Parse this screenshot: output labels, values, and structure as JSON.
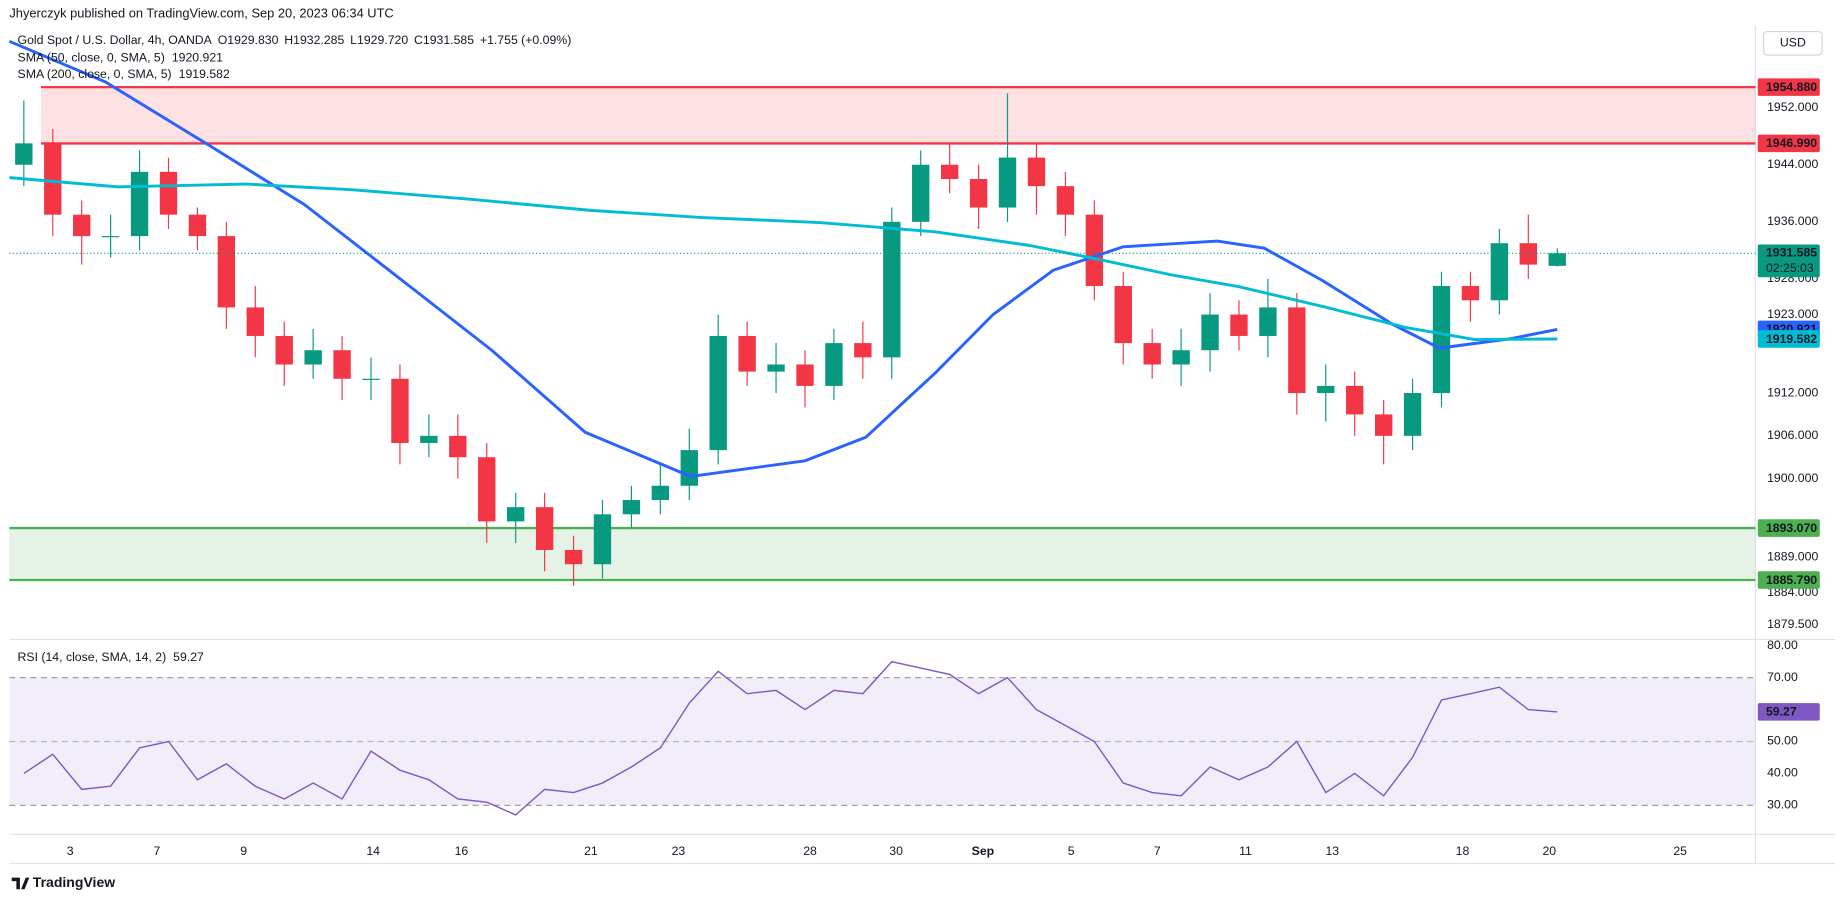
{
  "header": {
    "publisher": "Jhyerczyk published on TradingView.com, Sep 20, 2023 06:34 UTC",
    "symbol": "Gold Spot / U.S. Dollar, 4h, OANDA",
    "ohlc": [
      {
        "key": "O",
        "value": "1929.830"
      },
      {
        "key": "H",
        "value": "1932.285"
      },
      {
        "key": "L",
        "value": "1929.720"
      },
      {
        "key": "C",
        "value": "1931.585"
      }
    ],
    "change": "+1.755 (+0.09%)",
    "currency": "USD",
    "countdown": "02:25:03",
    "brand": "TradingView"
  },
  "chart_data": [
    {
      "type": "candlestick",
      "up_color": "#089981",
      "down_color": "#f23645",
      "x": [
        2,
        6,
        10,
        14,
        18,
        22,
        26,
        30,
        34,
        38,
        42,
        46,
        50,
        54,
        58,
        62,
        66,
        70,
        74,
        78,
        82,
        86,
        90,
        94,
        98,
        102,
        106,
        110,
        114,
        118,
        122,
        126,
        130,
        134,
        138,
        142,
        146,
        150,
        154,
        158,
        162,
        166,
        170,
        174,
        178,
        182,
        186,
        190,
        194,
        198,
        202,
        206,
        210,
        214
      ],
      "open": [
        1944,
        1947,
        1937,
        1934,
        1934,
        1943,
        1937,
        1934,
        1924,
        1920,
        1916,
        1918,
        1914,
        1914,
        1905,
        1906,
        1903,
        1894,
        1896,
        1890,
        1888,
        1895,
        1897,
        1899,
        1904,
        1920,
        1915,
        1916,
        1913,
        1919,
        1917,
        1936,
        1944,
        1942,
        1938,
        1945,
        1941,
        1937,
        1927,
        1919,
        1916,
        1918,
        1923,
        1920,
        1924,
        1912,
        1913,
        1909,
        1906,
        1912,
        1927,
        1925,
        1933,
        1929.83
      ],
      "high": [
        1953,
        1949,
        1939,
        1937,
        1946,
        1945,
        1938,
        1936,
        1927,
        1922,
        1921,
        1920,
        1917,
        1916,
        1909,
        1909,
        1905,
        1898,
        1898,
        1892,
        1897,
        1899,
        1902,
        1907,
        1923,
        1922,
        1919,
        1918,
        1921,
        1922,
        1938,
        1946,
        1947,
        1944,
        1954,
        1947,
        1943,
        1939,
        1929,
        1921,
        1921,
        1926,
        1925,
        1928,
        1926,
        1916,
        1915,
        1911,
        1914,
        1929,
        1929,
        1935,
        1937,
        1932.285
      ],
      "low": [
        1941,
        1934,
        1930,
        1931,
        1932,
        1935,
        1932,
        1921,
        1917,
        1913,
        1914,
        1911,
        1911,
        1902,
        1903,
        1900,
        1891,
        1891,
        1887,
        1885,
        1886,
        1893,
        1895,
        1897,
        1902,
        1913,
        1912,
        1910,
        1911,
        1914,
        1914,
        1934,
        1940,
        1935,
        1936,
        1937,
        1934,
        1925,
        1916,
        1914,
        1913,
        1915,
        1918,
        1917,
        1909,
        1908,
        1906,
        1902,
        1904,
        1910,
        1922,
        1923,
        1928,
        1929.72
      ],
      "close": [
        1947,
        1937,
        1934,
        1934,
        1943,
        1937,
        1934,
        1924,
        1920,
        1916,
        1918,
        1914,
        1914,
        1905,
        1906,
        1903,
        1894,
        1896,
        1890,
        1888,
        1895,
        1897,
        1899,
        1904,
        1920,
        1915,
        1916,
        1913,
        1919,
        1917,
        1936,
        1944,
        1942,
        1938,
        1945,
        1941,
        1937,
        1927,
        1919,
        1916,
        1918,
        1923,
        1920,
        1924,
        1912,
        1913,
        1909,
        1906,
        1912,
        1927,
        1925,
        1933,
        1930,
        1931.585
      ],
      "series": [
        {
          "name": "SMA (50, close, 0, SMA, 5)",
          "color": "#2962ff",
          "x": [
            0,
            13.3,
            27.8,
            40.8,
            55.3,
            66.7,
            79.6,
            94.2,
            110,
            118.4,
            128,
            136,
            144.3,
            154,
            167,
            173.5,
            181.5,
            191.3,
            197.7,
            207.5,
            214
          ],
          "values": [
            1961.3,
            1955.6,
            1946.6,
            1938.4,
            1927,
            1918,
            1906.5,
            1900.3,
            1902.5,
            1905.8,
            1914.8,
            1923,
            1929.2,
            1932.5,
            1933.3,
            1932.3,
            1927.8,
            1921.6,
            1918.3,
            1919.6,
            1920.921
          ]
        },
        {
          "name": "SMA (200, close, 0, SMA, 5)",
          "color": "#00bcd4",
          "x": [
            0,
            15,
            32.7,
            47.3,
            63.4,
            80.4,
            95.8,
            112,
            128,
            141,
            150.8,
            160.5,
            170,
            181.7,
            193,
            202.6,
            214
          ],
          "values": [
            1942.2,
            1940.9,
            1941.3,
            1940.5,
            1939.2,
            1937.6,
            1936.6,
            1935.9,
            1934.6,
            1932.7,
            1930.7,
            1928.6,
            1926.9,
            1924.1,
            1921.2,
            1919.5,
            1919.582
          ]
        }
      ],
      "resistance_zone": {
        "color": "#f23645",
        "levels": [
          {
            "value": 1954.88,
            "label": "1954.880"
          },
          {
            "value": 1946.99,
            "label": "1946.990"
          }
        ]
      },
      "support_zone": {
        "color": "#4caf50",
        "levels": [
          {
            "value": 1893.07,
            "label": "1893.070"
          },
          {
            "value": 1885.79,
            "label": "1885.790"
          }
        ]
      },
      "xlim": [
        0,
        241.4
      ],
      "xticks": [
        {
          "value": 8.4,
          "label": "3"
        },
        {
          "value": 20.4,
          "label": "7"
        },
        {
          "value": 32.4,
          "label": "9"
        },
        {
          "value": 50.3,
          "label": "14"
        },
        {
          "value": 62.5,
          "label": "16"
        },
        {
          "value": 80.4,
          "label": "21"
        },
        {
          "value": 92.5,
          "label": "23"
        },
        {
          "value": 110.7,
          "label": "28"
        },
        {
          "value": 122.6,
          "label": "30"
        },
        {
          "value": 134.6,
          "label": "Sep"
        },
        {
          "value": 146.8,
          "label": "5"
        },
        {
          "value": 158.7,
          "label": "7"
        },
        {
          "value": 170.9,
          "label": "11"
        },
        {
          "value": 182.9,
          "label": "13"
        },
        {
          "value": 200.9,
          "label": "18"
        },
        {
          "value": 212.9,
          "label": "20"
        },
        {
          "value": 231,
          "label": "25"
        }
      ],
      "ylim": [
        1877.7,
        1962.5
      ],
      "yticks": [
        {
          "value": 1952,
          "label": "1952.000"
        },
        {
          "value": 1944,
          "label": "1944.000"
        },
        {
          "value": 1936,
          "label": "1936.000"
        },
        {
          "value": 1928,
          "label": "1928.000"
        },
        {
          "value": 1923,
          "label": "1923.000"
        },
        {
          "value": 1912,
          "label": "1912.000"
        },
        {
          "value": 1906,
          "label": "1906.000"
        },
        {
          "value": 1900,
          "label": "1900.000"
        },
        {
          "value": 1889,
          "label": "1889.000"
        },
        {
          "value": 1884,
          "label": "1884.000"
        },
        {
          "value": 1879.5,
          "label": "1879.500"
        }
      ]
    },
    {
      "type": "line",
      "name": "RSI (14, close, SMA, 14, 2)",
      "color": "#7e57c2",
      "x": [
        2,
        6,
        10,
        14,
        18,
        22,
        26,
        30,
        34,
        38,
        42,
        46,
        50,
        54,
        58,
        62,
        66,
        70,
        74,
        78,
        82,
        86,
        90,
        94,
        98,
        102,
        106,
        110,
        114,
        118,
        122,
        126,
        130,
        134,
        138,
        142,
        146,
        150,
        154,
        158,
        162,
        166,
        170,
        174,
        178,
        182,
        186,
        190,
        194,
        198,
        202,
        206,
        210,
        214
      ],
      "values": [
        40,
        46,
        35,
        36,
        48,
        50,
        38,
        43,
        36,
        32,
        37,
        32,
        47,
        41,
        38,
        32,
        31,
        27,
        35,
        34,
        37,
        42,
        48,
        62,
        72,
        65,
        66,
        60,
        66,
        65,
        75,
        73,
        71,
        65,
        70,
        60,
        55,
        50,
        37,
        34,
        33,
        42,
        38,
        42,
        50,
        34,
        40,
        33,
        45,
        63,
        65,
        67,
        60,
        59.27
      ],
      "band": [
        30,
        70
      ],
      "midline": 50,
      "xlim": [
        0,
        241.4
      ],
      "ylim": [
        21.3,
        81.4
      ],
      "yticks": [
        {
          "value": 80,
          "label": "80.00"
        },
        {
          "value": 70,
          "label": "70.00"
        },
        {
          "value": 50,
          "label": "50.00"
        },
        {
          "value": 40,
          "label": "40.00"
        },
        {
          "value": 30,
          "label": "30.00"
        }
      ]
    }
  ]
}
